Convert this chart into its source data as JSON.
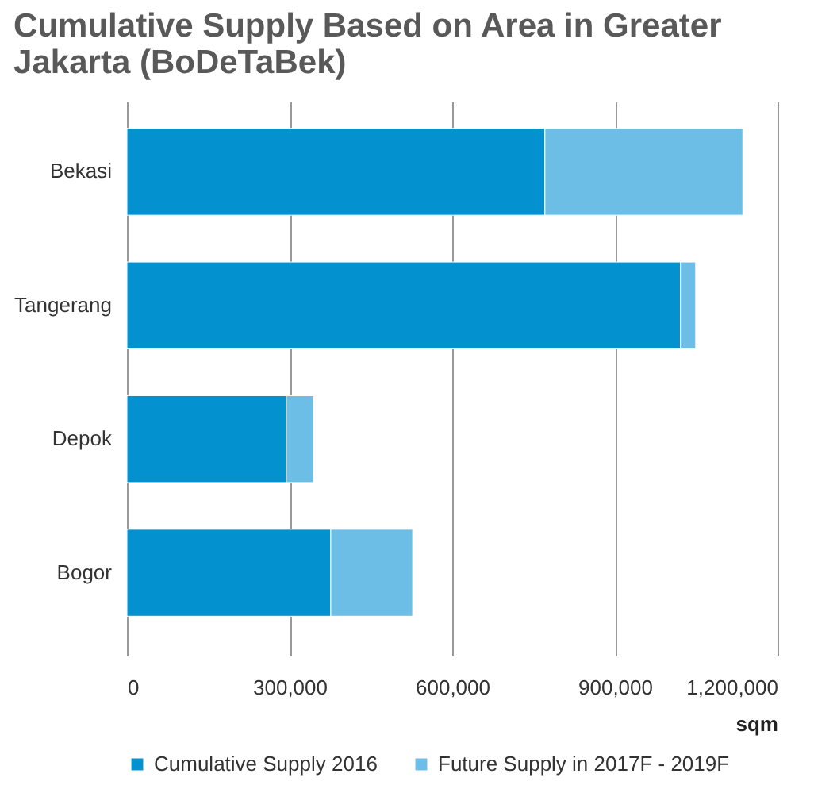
{
  "chart_data": {
    "type": "bar",
    "orientation": "horizontal",
    "stacked": true,
    "title": [
      "Cumulative Supply Based on Area in Greater",
      "Jakarta (BoDeTaBek)"
    ],
    "categories": [
      "Bekasi",
      "Tangerang",
      "Depok",
      "Bogor"
    ],
    "series": [
      {
        "name": "Cumulative Supply 2016",
        "color": "#0392cf",
        "values": [
          771000,
          1021000,
          294000,
          376000
        ]
      },
      {
        "name": "Future Supply in 2017F - 2019F",
        "color": "#6cbee6",
        "values": [
          365000,
          28000,
          50000,
          151000
        ]
      }
    ],
    "xlabel": "sqm",
    "xlim": [
      0,
      1200000
    ],
    "xticks": [
      0,
      {
        "value": 300000,
        "label": "300,000"
      },
      {
        "value": 600000,
        "label": "600,000"
      },
      {
        "value": 900000,
        "label": "900,000"
      },
      {
        "value": 1200000,
        "label": "1,200,000"
      }
    ],
    "grid": "x",
    "legend": "bottom"
  }
}
